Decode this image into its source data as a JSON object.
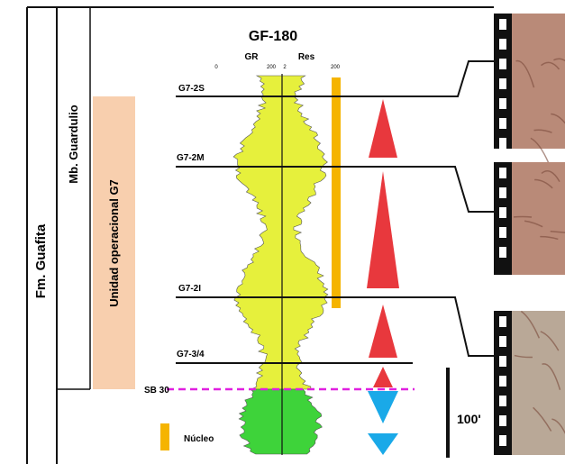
{
  "title": "GF-180",
  "scale": {
    "gr_label": "GR",
    "res_label": "Res",
    "gr_min": "0",
    "gr_max": "200",
    "res_min": "2",
    "res_max": "200"
  },
  "columns": {
    "formation": "Fm. Guafita",
    "member": "Mb. Guardulio",
    "unit": "Unidad operacional G7"
  },
  "markers": [
    "G7-2S",
    "G7-2M",
    "G7-2I",
    "G7-3/4",
    "SB 30"
  ],
  "legend": {
    "core": "Núcleo"
  },
  "scale_bar": "100'"
}
